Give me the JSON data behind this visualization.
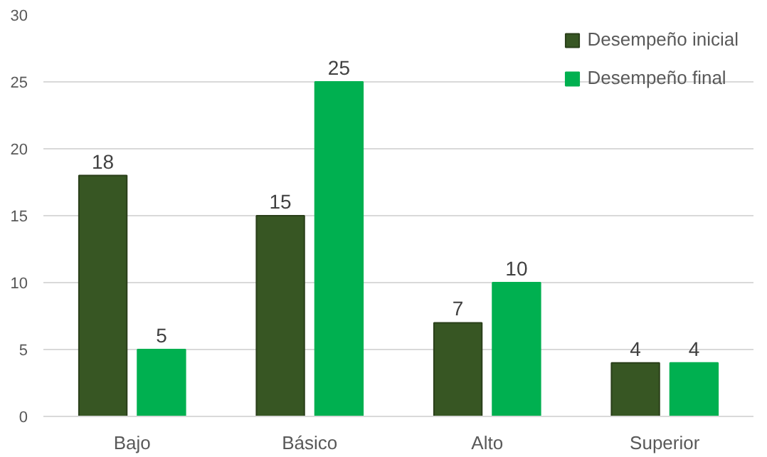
{
  "chart_data": {
    "type": "bar",
    "categories": [
      "Bajo",
      "Básico",
      "Alto",
      "Superior"
    ],
    "series": [
      {
        "name": "Desempeño inicial",
        "color": "#375623",
        "values": [
          18,
          15,
          7,
          4
        ]
      },
      {
        "name": "Desempeño final",
        "color": "#00b050",
        "values": [
          5,
          25,
          10,
          4
        ]
      }
    ],
    "ylim": [
      0,
      30
    ],
    "yticks": [
      0,
      5,
      10,
      15,
      20,
      25,
      30
    ],
    "grid": "y",
    "legend": "top right",
    "data_labels": true
  }
}
